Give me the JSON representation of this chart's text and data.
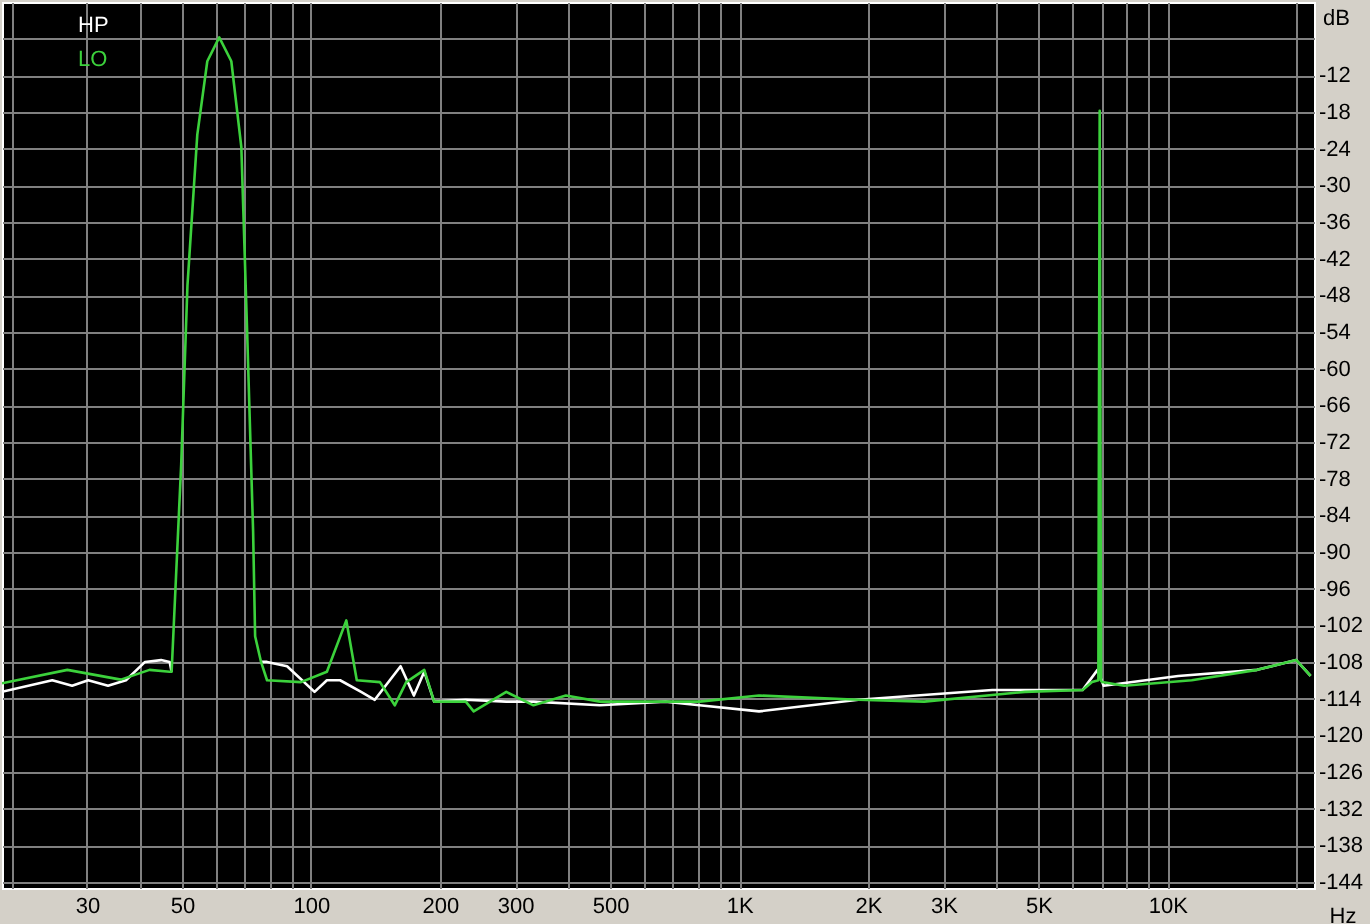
{
  "chart_data": {
    "type": "line",
    "xlabel": "Hz",
    "ylabel": "dB",
    "log": "x",
    "grid": true,
    "legend": "top left",
    "marker": "none",
    "line_style": "solid",
    "xlim": [
      19,
      22000
    ],
    "ylim": [
      -145,
      0
    ],
    "xticks": [
      {
        "value": 20,
        "label": null
      },
      30,
      {
        "value": 40,
        "label": null
      },
      50,
      {
        "value": 60,
        "label": null
      },
      {
        "value": 70,
        "label": null
      },
      {
        "value": 80,
        "label": null
      },
      {
        "value": 90,
        "label": null
      },
      100,
      200,
      300,
      {
        "value": 400,
        "label": null
      },
      500,
      {
        "value": 600,
        "label": null
      },
      {
        "value": 700,
        "label": null
      },
      {
        "value": 800,
        "label": null
      },
      {
        "value": 900,
        "label": null
      },
      {
        "value": 1000,
        "label": "1K"
      },
      {
        "value": 2000,
        "label": "2K"
      },
      {
        "value": 3000,
        "label": "3K"
      },
      {
        "value": 4000,
        "label": null
      },
      {
        "value": 5000,
        "label": "5K"
      },
      {
        "value": 6000,
        "label": null
      },
      {
        "value": 7000,
        "label": null
      },
      {
        "value": 8000,
        "label": null
      },
      {
        "value": 9000,
        "label": null
      },
      {
        "value": 10000,
        "label": "10K"
      },
      {
        "value": 20000,
        "label": null
      }
    ],
    "yticks": [
      {
        "value": -6,
        "label": null
      },
      -12,
      -18,
      -24,
      -30,
      -36,
      -42,
      -48,
      -54,
      -60,
      -66,
      -72,
      -78,
      -84,
      -90,
      -96,
      -102,
      -108,
      -114,
      -120,
      -126,
      -132,
      -138,
      -144
    ],
    "series": [
      {
        "name": "HP",
        "color": "#ffffff",
        "x": [
          19,
          24.9,
          27.7,
          30.2,
          33.6,
          37,
          41,
          44.7,
          46.8,
          47.3,
          49.8,
          51.5,
          54.3,
          57.3,
          61.1,
          65.2,
          68.8,
          71,
          73.3,
          74.1,
          76.5,
          79,
          88,
          102,
          109,
          117,
          131,
          141,
          162,
          174,
          184,
          194,
          230,
          286,
          331,
          473,
          673,
          808,
          1113,
          1900,
          3900,
          6340,
          6870,
          7100,
          10600,
          16200,
          20000,
          21600
        ],
        "values": [
          -112.9,
          -111,
          -111.9,
          -111,
          -111.9,
          -111,
          -108,
          -107.7,
          -108,
          -109.6,
          null,
          null,
          null,
          null,
          null,
          null,
          null,
          null,
          null,
          null,
          -108,
          -108,
          -108.7,
          -112.9,
          -111,
          -111,
          -112.9,
          -114.2,
          -108.7,
          -113.5,
          -109.6,
          -114.5,
          -114.2,
          -114.5,
          -114.5,
          -115.1,
          -114.5,
          -115.1,
          -116.1,
          -114.2,
          -112.6,
          -112.6,
          -109.3,
          -111.9,
          -110.3,
          -109.3,
          -107.7,
          -110.3
        ]
      },
      {
        "name": "LO",
        "color": "#3cd23c",
        "x": [
          19,
          27,
          36,
          42,
          46.8,
          47.3,
          49.8,
          51.5,
          54.3,
          57.3,
          61.1,
          65.2,
          68.8,
          71,
          73.3,
          74.1,
          76.5,
          79,
          94.8,
          109,
          121,
          128,
          145,
          157,
          167,
          184,
          194,
          230,
          240,
          286,
          331,
          394,
          473,
          673,
          808,
          1113,
          1900,
          2704,
          4650,
          6340,
          6670,
          6900,
          6950,
          7000,
          7040,
          7930,
          11400,
          16200,
          20000,
          21600
        ],
        "values": [
          -111.5,
          -109.3,
          -110.9,
          -109.3,
          -109.6,
          -109.6,
          -75.6,
          -46.4,
          -21.7,
          -9.7,
          -5.8,
          -9.7,
          -23.7,
          -54.2,
          -86.6,
          -103.8,
          -108,
          -111,
          -111.3,
          -109.6,
          -101.2,
          -111,
          -111.3,
          -115.1,
          -111.3,
          -109.3,
          -114.5,
          -114.5,
          -116.1,
          -112.9,
          -115.1,
          -113.5,
          -114.5,
          -114.5,
          -114.5,
          -113.5,
          -114.2,
          -114.5,
          -112.9,
          -112.6,
          -111.3,
          -111,
          -17.8,
          -111,
          -111.3,
          -111.9,
          -111,
          -109.3,
          -107.7,
          -110.3
        ]
      }
    ]
  }
}
